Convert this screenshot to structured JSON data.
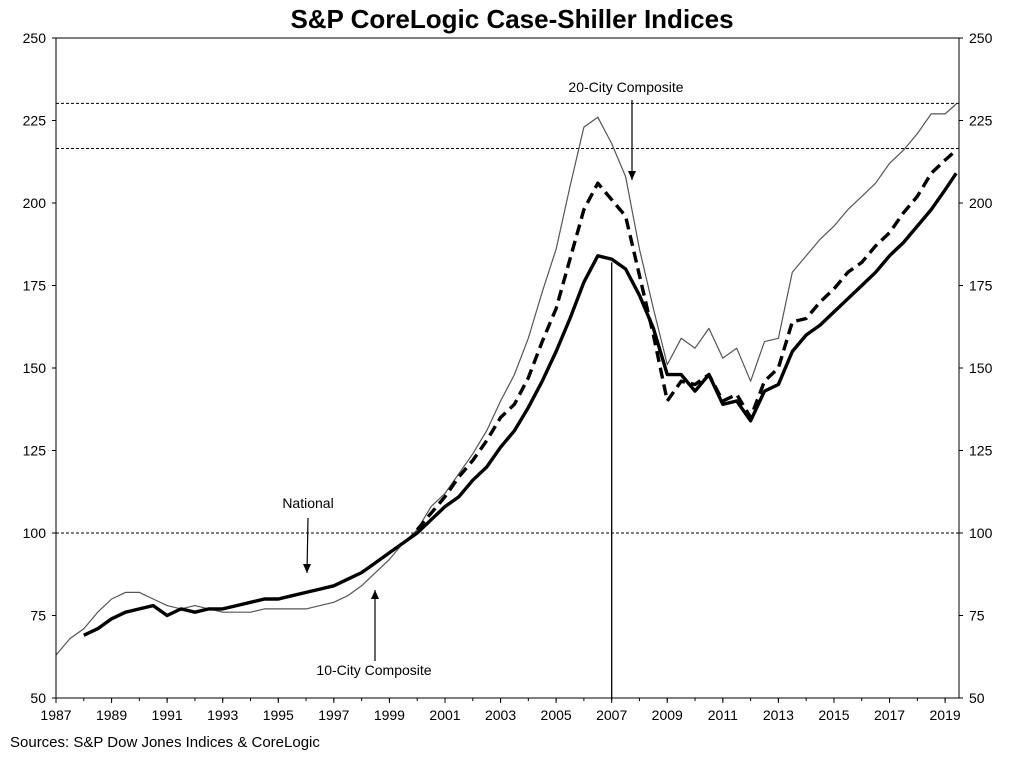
{
  "chart_data": {
    "type": "line",
    "title": "S&P CoreLogic Case-Shiller Indices",
    "source": "Sources:  S&P Dow Jones Indices & CoreLogic",
    "xlabel": "",
    "ylabel": "",
    "xlim": [
      1987,
      2019.5
    ],
    "ylim": [
      50,
      250
    ],
    "x_ticks": [
      "1987",
      "1989",
      "1991",
      "1993",
      "1995",
      "1997",
      "1999",
      "2001",
      "2003",
      "2005",
      "2007",
      "2009",
      "2011",
      "2013",
      "2015",
      "2017",
      "2019"
    ],
    "y_ticks": [
      "50",
      "75",
      "100",
      "125",
      "150",
      "175",
      "200",
      "225",
      "250"
    ],
    "grid": false,
    "reference_lines": [
      {
        "axis": "y",
        "value": 100,
        "style": "dotted"
      },
      {
        "axis": "y",
        "value": 216.5,
        "style": "dotted"
      },
      {
        "axis": "y",
        "value": 230.2,
        "style": "dotted"
      },
      {
        "axis": "x",
        "value": 2007.0,
        "style": "solid"
      }
    ],
    "annotations": [
      {
        "text": "20-City Composite",
        "series": "20-City Composite",
        "x": 2007.5,
        "y": 201
      },
      {
        "text": "National",
        "series": "National",
        "x": 1996.2,
        "y": 82
      },
      {
        "text": "10-City Composite",
        "series": "10-City Composite",
        "x": 1998.5,
        "y": 79
      }
    ],
    "series": [
      {
        "name": "National",
        "style": "thick-solid",
        "x": [
          1988.0,
          1988.5,
          1989.0,
          1989.5,
          1990.0,
          1990.5,
          1991.0,
          1991.5,
          1992.0,
          1992.5,
          1993.0,
          1993.5,
          1994.0,
          1994.5,
          1995.0,
          1995.5,
          1996.0,
          1996.5,
          1997.0,
          1997.5,
          1998.0,
          1998.5,
          1999.0,
          1999.5,
          2000.0,
          2000.5,
          2001.0,
          2001.5,
          2002.0,
          2002.5,
          2003.0,
          2003.5,
          2004.0,
          2004.5,
          2005.0,
          2005.5,
          2006.0,
          2006.5,
          2007.0,
          2007.5,
          2008.0,
          2008.5,
          2009.0,
          2009.5,
          2010.0,
          2010.5,
          2011.0,
          2011.5,
          2012.0,
          2012.5,
          2013.0,
          2013.5,
          2014.0,
          2014.5,
          2015.0,
          2015.5,
          2016.0,
          2016.5,
          2017.0,
          2017.5,
          2018.0,
          2018.5,
          2019.0,
          2019.4
        ],
        "values": [
          69,
          71,
          74,
          76,
          77,
          78,
          75,
          77,
          76,
          77,
          77,
          78,
          79,
          80,
          80,
          81,
          82,
          83,
          84,
          86,
          88,
          91,
          94,
          97,
          100,
          104,
          108,
          111,
          116,
          120,
          126,
          131,
          138,
          146,
          155,
          165,
          176,
          184,
          183,
          180,
          172,
          162,
          148,
          148,
          143,
          148,
          139,
          140,
          134,
          143,
          145,
          155,
          160,
          163,
          167,
          171,
          175,
          179,
          184,
          188,
          193,
          198,
          204,
          209
        ]
      },
      {
        "name": "20-City Composite",
        "style": "thick-dashed",
        "x": [
          2000.0,
          2000.5,
          2001.0,
          2001.5,
          2002.0,
          2002.5,
          2003.0,
          2003.5,
          2004.0,
          2004.5,
          2005.0,
          2005.5,
          2006.0,
          2006.5,
          2007.0,
          2007.5,
          2008.0,
          2008.5,
          2009.0,
          2009.5,
          2010.0,
          2010.5,
          2011.0,
          2011.5,
          2012.0,
          2012.5,
          2013.0,
          2013.5,
          2014.0,
          2014.5,
          2015.0,
          2015.5,
          2016.0,
          2016.5,
          2017.0,
          2017.5,
          2018.0,
          2018.5,
          2019.0,
          2019.4
        ],
        "values": [
          101,
          106,
          111,
          117,
          122,
          128,
          135,
          139,
          147,
          158,
          168,
          183,
          198,
          206,
          201,
          196,
          178,
          160,
          140,
          146,
          145,
          148,
          140,
          142,
          135,
          146,
          150,
          164,
          165,
          170,
          174,
          179,
          182,
          187,
          191,
          197,
          202,
          209,
          213,
          216
        ]
      },
      {
        "name": "10-City Composite",
        "style": "thin-solid",
        "x": [
          1987.0,
          1987.5,
          1988.0,
          1988.5,
          1989.0,
          1989.5,
          1990.0,
          1990.5,
          1991.0,
          1991.5,
          1992.0,
          1992.5,
          1993.0,
          1993.5,
          1994.0,
          1994.5,
          1995.0,
          1995.5,
          1996.0,
          1996.5,
          1997.0,
          1997.5,
          1998.0,
          1998.5,
          1999.0,
          1999.5,
          2000.0,
          2000.5,
          2001.0,
          2001.5,
          2002.0,
          2002.5,
          2003.0,
          2003.5,
          2004.0,
          2004.5,
          2005.0,
          2005.5,
          2006.0,
          2006.5,
          2007.0,
          2007.5,
          2008.0,
          2008.5,
          2009.0,
          2009.5,
          2010.0,
          2010.5,
          2011.0,
          2011.5,
          2012.0,
          2012.5,
          2013.0,
          2013.5,
          2014.0,
          2014.5,
          2015.0,
          2015.5,
          2016.0,
          2016.5,
          2017.0,
          2017.5,
          2018.0,
          2018.5,
          2019.0,
          2019.4
        ],
        "values": [
          63,
          68,
          71,
          76,
          80,
          82,
          82,
          80,
          78,
          77,
          78,
          77,
          76,
          76,
          76,
          77,
          77,
          77,
          77,
          78,
          79,
          81,
          84,
          88,
          92,
          97,
          101,
          108,
          112,
          118,
          124,
          131,
          140,
          148,
          159,
          173,
          186,
          205,
          223,
          226,
          218,
          208,
          186,
          168,
          151,
          159,
          156,
          162,
          153,
          156,
          146,
          158,
          159,
          179,
          184,
          189,
          193,
          198,
          202,
          206,
          212,
          216,
          221,
          227,
          227,
          230
        ]
      }
    ]
  }
}
